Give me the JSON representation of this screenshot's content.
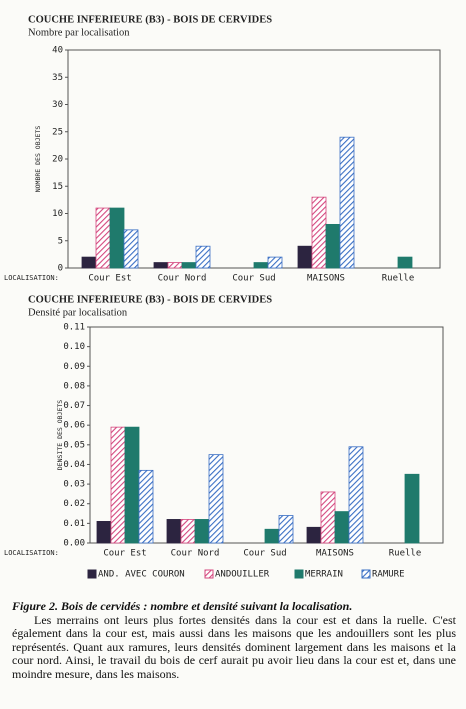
{
  "chart_data": [
    {
      "type": "bar",
      "title": "COUCHE INFERIEURE (B3) - BOIS DE CERVIDES",
      "subtitle": "Nombre par localisation",
      "y_label": "NOMBRE DES OBJETS",
      "x_label": "LOCALISATION:",
      "categories": [
        "Cour Est",
        "Cour Nord",
        "Cour Sud",
        "MAISONS",
        "Ruelle"
      ],
      "series": [
        {
          "name": "AND. AVEC COURON",
          "color": "#2c2440",
          "hatched": false,
          "values": [
            2,
            1,
            0,
            4,
            0
          ]
        },
        {
          "name": "ANDOUILLER",
          "color": "#d4477e",
          "hatched": true,
          "values": [
            11,
            1,
            0,
            13,
            0
          ]
        },
        {
          "name": "MERRAIN",
          "color": "#1f7a6c",
          "hatched": false,
          "values": [
            11,
            1,
            1,
            8,
            2
          ]
        },
        {
          "name": "RAMURE",
          "color": "#3a6fc4",
          "hatched": true,
          "values": [
            7,
            4,
            2,
            24,
            0
          ]
        }
      ],
      "ylim": [
        0,
        40
      ],
      "yticks": [
        0,
        5,
        10,
        15,
        20,
        25,
        30,
        35,
        40
      ],
      "grid": false,
      "legend": false
    },
    {
      "type": "bar",
      "title": "COUCHE INFERIEURE (B3) - BOIS DE CERVIDES",
      "subtitle": "Densité par localisation",
      "y_label": "DENSITE DES OBJETS",
      "x_label": "LOCALISATION:",
      "categories": [
        "Cour Est",
        "Cour Nord",
        "Cour Sud",
        "MAISONS",
        "Ruelle"
      ],
      "series": [
        {
          "name": "AND. AVEC COURON",
          "color": "#2c2440",
          "hatched": false,
          "values": [
            0.011,
            0.012,
            0,
            0.008,
            0
          ]
        },
        {
          "name": "ANDOUILLER",
          "color": "#d4477e",
          "hatched": true,
          "values": [
            0.059,
            0.012,
            0,
            0.026,
            0
          ]
        },
        {
          "name": "MERRAIN",
          "color": "#1f7a6c",
          "hatched": false,
          "values": [
            0.059,
            0.012,
            0.007,
            0.016,
            0.035
          ]
        },
        {
          "name": "RAMURE",
          "color": "#3a6fc4",
          "hatched": true,
          "values": [
            0.037,
            0.045,
            0.014,
            0.049,
            0
          ]
        }
      ],
      "ylim": [
        0,
        0.11
      ],
      "yticks": [
        {
          "value": 0,
          "label": "0.00"
        },
        {
          "value": 0.01,
          "label": "0.01"
        },
        {
          "value": 0.02,
          "label": "0.02"
        },
        {
          "value": 0.03,
          "label": "0.03"
        },
        {
          "value": 0.04,
          "label": "0.04"
        },
        {
          "value": 0.05,
          "label": "0.05"
        },
        {
          "value": 0.06,
          "label": "0.06"
        },
        {
          "value": 0.07,
          "label": "0.07"
        },
        {
          "value": 0.08,
          "label": "0.08"
        },
        {
          "value": 0.09,
          "label": "0.09"
        },
        {
          "value": 0.1,
          "label": "0.10"
        },
        {
          "value": 0.11,
          "label": "0.11"
        }
      ],
      "grid": false,
      "legend": "bottom"
    }
  ],
  "caption": {
    "title": "Figure 2. Bois de cervidés : nombre et densité suivant la localisation.",
    "text": "Les merrains ont leurs plus fortes densités dans la cour est et dans la ruelle. C'est également dans la cour est, mais aussi dans les maisons que les andouillers sont les plus représentés. Quant aux ramures, leurs densités dominent largement dans les maisons et la cour nord. Ainsi, le travail du bois de cerf aurait pu avoir lieu dans la cour est et, dans une moindre mesure, dans les maisons."
  }
}
